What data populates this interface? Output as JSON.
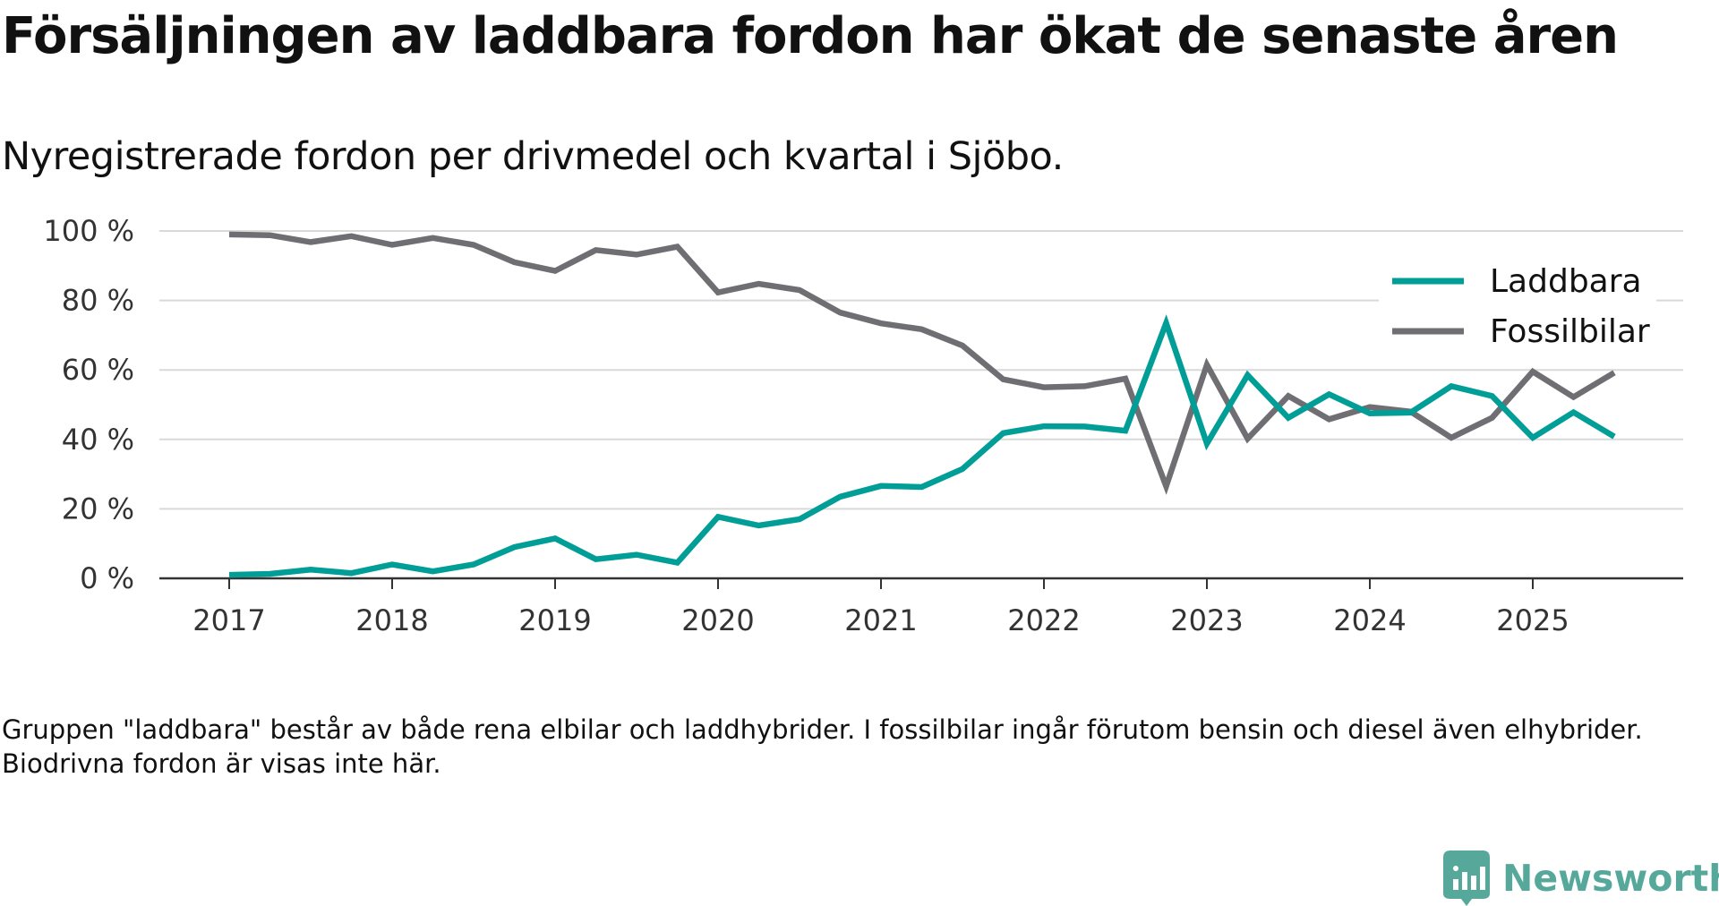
{
  "title": "Försäljningen av laddbara fordon har ökat de senaste åren",
  "subtitle": "Nyregistrerade fordon per drivmedel och kvartal i Sjöbo.",
  "note": "Gruppen \"laddbara\" består av både rena elbilar och laddhybrider. I fossilbilar ingår förutom bensin och diesel även elhybrider. Biodrivna fordon är visas inte här.",
  "brand": {
    "name": "Newsworthy",
    "color": "#55a89a",
    "icon": "newsworthy-logo-icon"
  },
  "chart_data": {
    "type": "line",
    "ylim": [
      0,
      100
    ],
    "xlim": [
      2017,
      2026
    ],
    "yticks": [
      0,
      20,
      40,
      60,
      80,
      100
    ],
    "ytick_labels": [
      "0 %",
      "20 %",
      "40 %",
      "60 %",
      "80 %",
      "100 %"
    ],
    "xticks": [
      2017,
      2018,
      2019,
      2020,
      2021,
      2022,
      2023,
      2024,
      2025
    ],
    "xtick_labels": [
      "2017",
      "2018",
      "2019",
      "2020",
      "2021",
      "2022",
      "2023",
      "2024",
      "2025"
    ],
    "grid": true,
    "legend_position": "top-right",
    "x": [
      2017.0,
      2017.25,
      2017.5,
      2017.75,
      2018.0,
      2018.25,
      2018.5,
      2018.75,
      2019.0,
      2019.25,
      2019.5,
      2019.75,
      2020.0,
      2020.25,
      2020.5,
      2020.75,
      2021.0,
      2021.25,
      2021.5,
      2021.75,
      2022.0,
      2022.25,
      2022.5,
      2022.75,
      2023.0,
      2023.25,
      2023.5,
      2023.75,
      2024.0,
      2024.25,
      2024.5,
      2024.75,
      2025.0,
      2025.25,
      2025.5
    ],
    "series": [
      {
        "name": "Laddbara",
        "color": "#009e96",
        "values": [
          1,
          1.3,
          2.5,
          1.5,
          4,
          2,
          4,
          9,
          11.5,
          5.5,
          6.8,
          4.5,
          17.7,
          15.2,
          17,
          23.5,
          26.6,
          26.3,
          31.5,
          41.8,
          43.8,
          43.7,
          42.5,
          73.5,
          38.8,
          58.5,
          46.2,
          53,
          47.5,
          47.7,
          55.3,
          52.5,
          40.5,
          47.8,
          40.8
        ]
      },
      {
        "name": "Fossilbilar",
        "color": "#6e6e73",
        "values": [
          99,
          98.8,
          96.8,
          98.5,
          96,
          98,
          96,
          91,
          88.5,
          94.5,
          93.2,
          95.5,
          82.3,
          84.8,
          83,
          76.5,
          73.4,
          71.7,
          67,
          57.3,
          55,
          55.3,
          57.5,
          26.5,
          61.5,
          40.2,
          52.5,
          45.8,
          49.3,
          48,
          40.5,
          46.2,
          59.5,
          52.2,
          59.2
        ]
      }
    ]
  }
}
